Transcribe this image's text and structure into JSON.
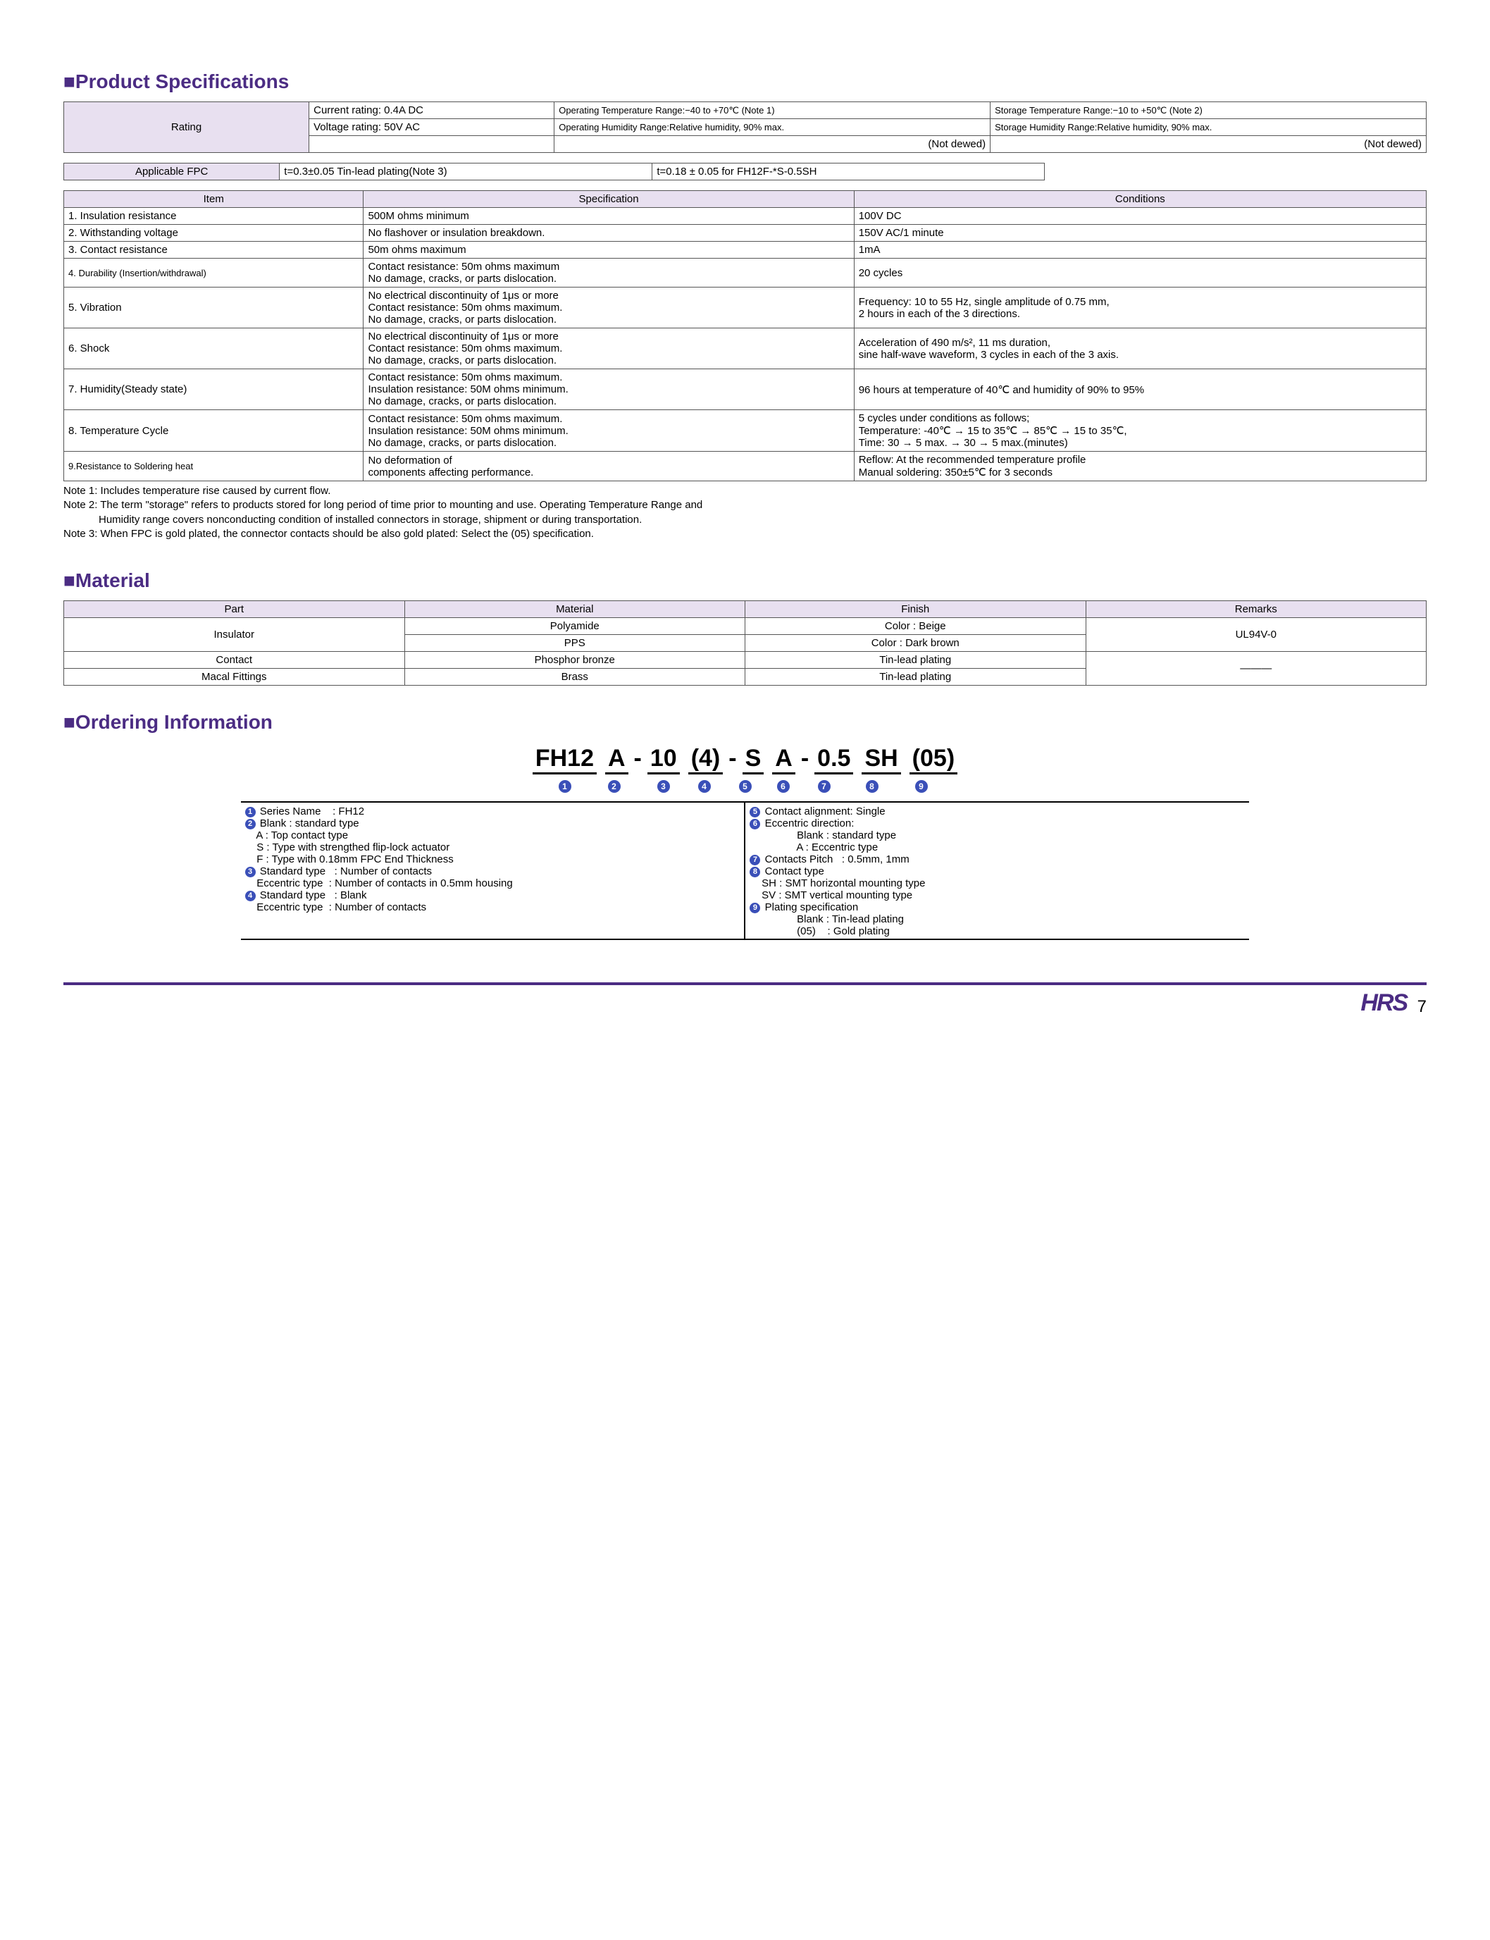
{
  "headings": {
    "spec": "■Product Specifications",
    "material": "■Material",
    "ordering": "■Ordering Information"
  },
  "rating": {
    "label": "Rating",
    "current": "Current rating: 0.4A DC",
    "voltage": "Voltage rating: 50V AC",
    "op_temp": "Operating Temperature Range:−40 to +70℃ (Note 1)",
    "op_hum": "Operating Humidity Range:Relative humidity, 90% max.",
    "op_dew": "(Not dewed)",
    "st_temp": "Storage Temperature Range:−10 to +50℃ (Note 2)",
    "st_hum": "Storage Humidity Range:Relative humidity, 90% max.",
    "st_dew": "(Not dewed)"
  },
  "fpc": {
    "label": "Applicable FPC",
    "a": "t=0.3±0.05  Tin-lead plating(Note 3)",
    "b": "t=0.18 ± 0.05 for FH12F-*S-0.5SH"
  },
  "spec_table": {
    "h1": "Item",
    "h2": "Specification",
    "h3": "Conditions",
    "rows": [
      {
        "i": "1. Insulation resistance",
        "s": "500M ohms minimum",
        "c": "100V DC"
      },
      {
        "i": "2. Withstanding voltage",
        "s": "No flashover or insulation breakdown.",
        "c": "150V AC/1 minute"
      },
      {
        "i": "3. Contact resistance",
        "s": "50m ohms maximum",
        "c": "1mA"
      },
      {
        "i": "4. Durability (Insertion/withdrawal)",
        "s": "Contact resistance: 50m ohms maximum\nNo damage, cracks, or parts dislocation.",
        "c": "20 cycles",
        "small": true
      },
      {
        "i": "5. Vibration",
        "s": "No electrical discontinuity of 1μs or more\nContact resistance: 50m ohms maximum.\nNo damage, cracks, or parts dislocation.",
        "c": "Frequency: 10 to 55 Hz, single amplitude of 0.75 mm,\n2 hours in each of the 3 directions."
      },
      {
        "i": "6. Shock",
        "s": "No electrical discontinuity of 1μs or more\nContact resistance: 50m ohms maximum.\nNo damage, cracks, or parts dislocation.",
        "c": "Acceleration of 490 m/s², 11 ms duration,\nsine half-wave waveform, 3 cycles in each of the 3 axis."
      },
      {
        "i": "7. Humidity(Steady state)",
        "s": "Contact resistance: 50m ohms maximum.\nInsulation resistance: 50M ohms minimum.\nNo damage, cracks, or parts dislocation.",
        "c": "96 hours at temperature of 40℃ and humidity of 90% to 95%"
      },
      {
        "i": "8. Temperature Cycle",
        "s": "Contact resistance: 50m ohms maximum.\nInsulation resistance: 50M ohms minimum.\nNo damage, cracks, or parts dislocation.",
        "c": "5 cycles under conditions as follows;\nTemperature: -40℃ → 15 to 35℃ → 85℃ → 15 to 35℃,\nTime: 30 → 5 max. → 30 → 5 max.(minutes)"
      },
      {
        "i": "9.Resistance to Soldering heat",
        "s": "No deformation of\ncomponents affecting performance.",
        "c": "Reflow: At the recommended temperature profile\nManual soldering: 350±5℃ for 3 seconds",
        "small": true
      }
    ]
  },
  "notes": {
    "n1": "Note 1: Includes temperature rise caused by current flow.",
    "n2a": "Note 2: The term \"storage\" refers to products stored for long period of time prior to mounting and use. Operating Temperature Range and",
    "n2b": "            Humidity range covers nonconducting condition of installed connectors in storage, shipment or during transportation.",
    "n3": "Note 3: When FPC is gold plated, the connector contacts should be also gold plated: Select the (05) specification."
  },
  "material": {
    "h1": "Part",
    "h2": "Material",
    "h3": "Finish",
    "h4": "Remarks",
    "r1p": "Insulator",
    "r1m": "Polyamide",
    "r1f": "Color : Beige",
    "r1r": "UL94V-0",
    "r2m": "PPS",
    "r2f": "Color : Dark brown",
    "r3p": "Contact",
    "r3m": "Phosphor bronze",
    "r3f": "Tin-lead plating",
    "r3r": "———",
    "r4p": "Macal Fittings",
    "r4m": "Brass",
    "r4f": "Tin-lead plating"
  },
  "order": {
    "segs": [
      "FH12",
      "A",
      "10",
      "(4)",
      "S",
      "A",
      "0.5",
      "SH",
      "(05)"
    ],
    "nums": [
      "1",
      "2",
      "3",
      "4",
      "5",
      "6",
      "7",
      "8",
      "9"
    ],
    "left": [
      "❶ Series Name    : FH12",
      "❷ Blank : standard type",
      "    A : Top contact type",
      "    S : Type with strengthed flip-lock actuator",
      "    F : Type with 0.18mm FPC End Thickness",
      "❸ Standard type   : Number of contacts",
      "    Eccentric type  : Number of contacts in 0.5mm housing",
      "❹ Standard type   : Blank",
      "    Eccentric type  : Number of contacts"
    ],
    "right": [
      "❺ Contact alignment: Single",
      "❻ Eccentric direction:",
      "                Blank : standard type",
      "                A : Eccentric type",
      "❼ Contacts Pitch   : 0.5mm, 1mm",
      "❽ Contact type",
      "    SH : SMT horizontal mounting type",
      "    SV : SMT vertical mounting type",
      "❾ Plating specification",
      "                Blank : Tin-lead plating",
      "                (05)    : Gold plating"
    ]
  },
  "footer": {
    "logo": "HRS",
    "page": "7"
  }
}
